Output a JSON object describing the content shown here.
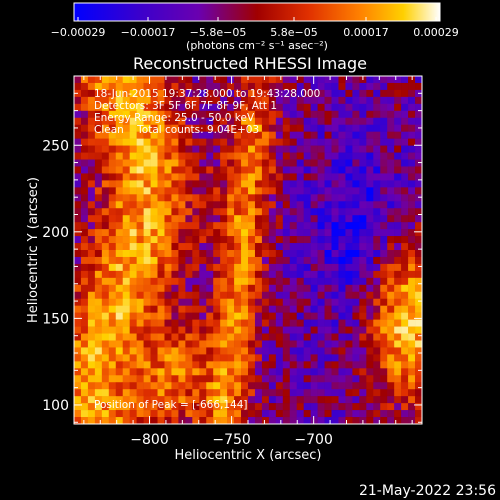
{
  "chart_data": {
    "type": "heatmap",
    "title": "Reconstructed RHESSI Image",
    "xlabel": "Heliocentric X (arcsec)",
    "ylabel": "Heliocentric Y (arcsec)",
    "xlim": [
      -846,
      -634
    ],
    "ylim": [
      89,
      290
    ],
    "xticks": [
      -800,
      -750,
      -700
    ],
    "xtick_labels": [
      "−800",
      "−750",
      "−700"
    ],
    "yticks": [
      100,
      150,
      200,
      250
    ],
    "ytick_labels": [
      "100",
      "150",
      "200",
      "250"
    ],
    "colorbar": {
      "min": -0.00029,
      "max": 0.00029,
      "tick_labels": [
        "−0.00029",
        "−0.00017",
        "−5.8e−05",
        "5.8e−05",
        "0.00017",
        "0.00029"
      ],
      "unit_label": "(photons cm⁻² s⁻¹ asec⁻²)",
      "colormap": [
        "#0000ff",
        "#3b00cc",
        "#6a00b0",
        "#a00000",
        "#e03000",
        "#ff8000",
        "#ffd000",
        "#ffffff"
      ]
    },
    "annotations": [
      "18-Jun-2015 19:37:28.000 to 19:43:28.000",
      "Detectors: 3F 5F 6F 7F 8F 9F, Att 1",
      "Energy Range: 25.0 - 50.0 keV",
      "Clean    Total counts: 9.04E+03"
    ],
    "peak_label": "Position of Peak = [-666,144]",
    "peak": [
      -666,
      144
    ],
    "grid": false
  },
  "footer": {
    "timestamp": "21-May-2022 23:56"
  }
}
